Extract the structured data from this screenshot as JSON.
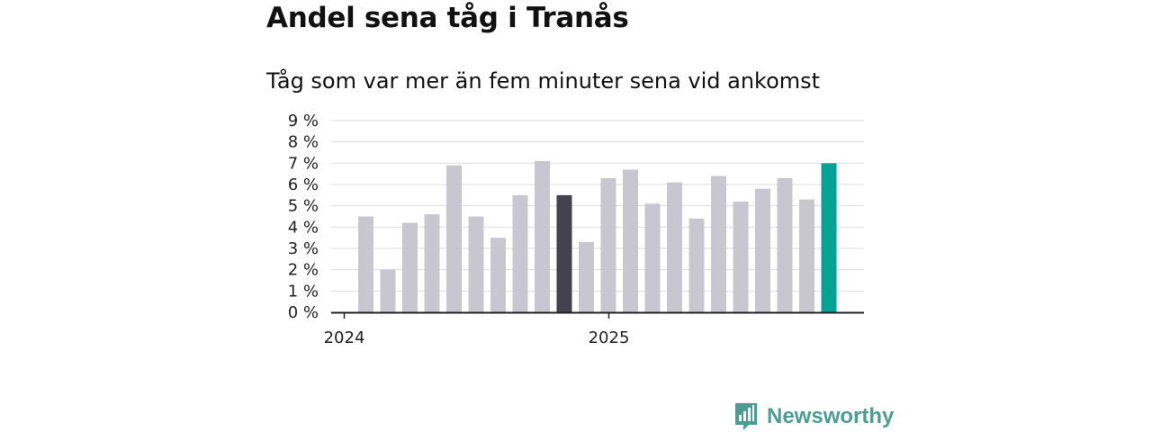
{
  "header": {
    "title": "Andel sena tåg i Tranås",
    "subtitle": "Tåg som var mer än fem minuter sena vid ankomst"
  },
  "brand": {
    "name": "Newsworthy",
    "icon": "newsworthy-logo-icon",
    "color": "#4e9d94"
  },
  "colors": {
    "bar_default": "#c8c7cf",
    "bar_highlight_dark": "#43424d",
    "bar_highlight_current": "#05a295",
    "grid": "#dddddd",
    "axis": "#222222"
  },
  "chart_data": {
    "type": "bar",
    "title": "Andel sena tåg i Tranås",
    "subtitle": "Tåg som var mer än fem minuter sena vid ankomst",
    "xlabel": "",
    "ylabel": "",
    "ylim": [
      0,
      9
    ],
    "yticks": [
      "0 %",
      "1 %",
      "2 %",
      "3 %",
      "4 %",
      "5 %",
      "6 %",
      "7 %",
      "8 %",
      "9 %"
    ],
    "xticks": [
      {
        "label": "2024",
        "index": 0
      },
      {
        "label": "2025",
        "index": 12
      }
    ],
    "grid": true,
    "legend": "none",
    "series": [
      {
        "values": [
          4.5,
          2.0,
          4.2,
          4.6,
          6.9,
          4.5,
          3.5,
          5.5,
          7.1,
          5.5,
          3.3,
          6.3,
          6.7,
          5.1,
          6.1,
          4.4,
          6.4,
          5.2,
          5.8,
          6.3,
          5.3,
          7.0
        ],
        "highlight": {
          "9": "bar_highlight_dark",
          "21": "bar_highlight_current"
        }
      }
    ]
  }
}
